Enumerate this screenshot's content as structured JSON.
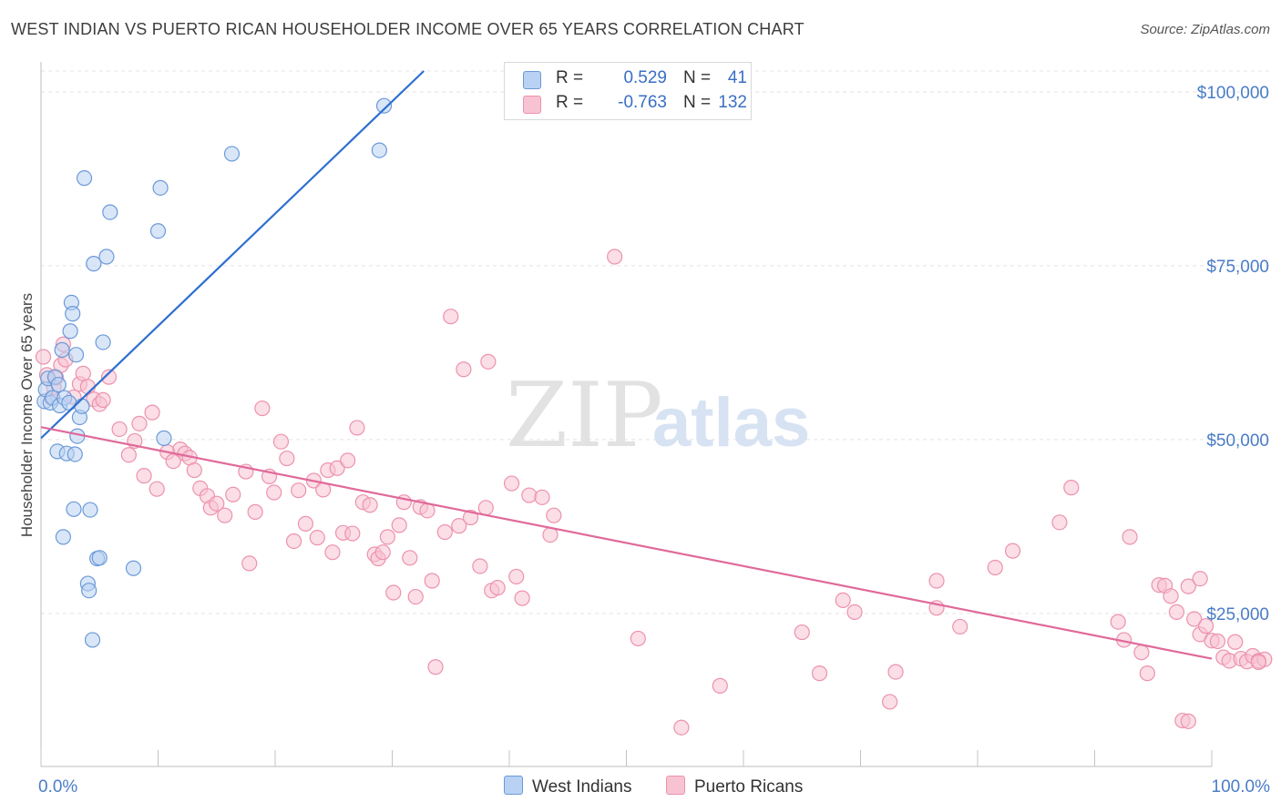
{
  "title": "WEST INDIAN VS PUERTO RICAN HOUSEHOLDER INCOME OVER 65 YEARS CORRELATION CHART",
  "source": "Source: ZipAtlas.com",
  "watermark": {
    "zip": "ZIP",
    "atlas": "atlas"
  },
  "colors": {
    "blue_fill": "#b9d1f2",
    "blue_stroke": "#6b9ad8",
    "blue_line": "#2f6fd0",
    "pink_fill": "#f7c3d2",
    "pink_stroke": "#ec92ad",
    "pink_line": "#e0699a",
    "accent_text": "#3a6fc4"
  },
  "legend": {
    "rows": [
      {
        "r_label": "R =",
        "r_value": "0.529",
        "n_label": "N =",
        "n_value": "41"
      },
      {
        "r_label": "R =",
        "r_value": "-0.763",
        "n_label": "N =",
        "n_value": "132"
      }
    ]
  },
  "bottom_legend": {
    "series1": "West Indians",
    "series2": "Puerto Ricans"
  },
  "chart_data": {
    "type": "scatter",
    "title": "WEST INDIAN VS PUERTO RICAN HOUSEHOLDER INCOME OVER 65 YEARS CORRELATION CHART",
    "xlabel": "",
    "ylabel": "Householder Income Over 65 years",
    "x_tick_labels": [
      "0.0%",
      "100.0%"
    ],
    "y_tick_labels": [
      "$100,000",
      "$75,000",
      "$50,000",
      "$25,000"
    ],
    "y_ticks": [
      100000,
      75000,
      50000,
      25000
    ],
    "xlim": [
      0,
      100
    ],
    "ylim": [
      3000,
      103000
    ],
    "grid": true,
    "legend_position": "top-center",
    "series": [
      {
        "name": "West Indians",
        "r": 0.529,
        "n": 41,
        "trend": {
          "x0": 0.0,
          "y0": 50200,
          "x1": 32.7,
          "y1": 103000
        },
        "points": [
          [
            0.3,
            55500
          ],
          [
            0.4,
            57200
          ],
          [
            0.6,
            58800
          ],
          [
            0.8,
            55300
          ],
          [
            1.0,
            56000
          ],
          [
            1.2,
            59000
          ],
          [
            1.4,
            48300
          ],
          [
            1.6,
            54900
          ],
          [
            1.8,
            62900
          ],
          [
            2.0,
            56000
          ],
          [
            2.2,
            48000
          ],
          [
            2.4,
            55300
          ],
          [
            2.5,
            65600
          ],
          [
            2.6,
            69700
          ],
          [
            2.7,
            68100
          ],
          [
            2.8,
            40000
          ],
          [
            2.9,
            47900
          ],
          [
            3.0,
            62200
          ],
          [
            3.1,
            50500
          ],
          [
            3.3,
            53200
          ],
          [
            3.5,
            54800
          ],
          [
            1.9,
            36000
          ],
          [
            3.7,
            87600
          ],
          [
            4.0,
            29300
          ],
          [
            4.1,
            28300
          ],
          [
            4.2,
            39900
          ],
          [
            4.4,
            21200
          ],
          [
            4.5,
            75300
          ],
          [
            4.8,
            32900
          ],
          [
            5.0,
            33000
          ],
          [
            5.3,
            64000
          ],
          [
            5.6,
            76300
          ],
          [
            5.9,
            82700
          ],
          [
            7.9,
            31500
          ],
          [
            10.0,
            80000
          ],
          [
            10.2,
            86200
          ],
          [
            10.5,
            50200
          ],
          [
            16.3,
            91100
          ],
          [
            28.9,
            91600
          ],
          [
            29.3,
            98000
          ],
          [
            1.5,
            57900
          ]
        ]
      },
      {
        "name": "Puerto Ricans",
        "r": -0.763,
        "n": 132,
        "trend": {
          "x0": 0.0,
          "y0": 51800,
          "x1": 100.0,
          "y1": 18500
        },
        "points": [
          [
            0.2,
            61900
          ],
          [
            0.5,
            59300
          ],
          [
            0.9,
            56000
          ],
          [
            1.1,
            57500
          ],
          [
            1.3,
            58900
          ],
          [
            1.7,
            60700
          ],
          [
            1.9,
            63700
          ],
          [
            2.1,
            61500
          ],
          [
            2.8,
            56100
          ],
          [
            3.3,
            58000
          ],
          [
            3.6,
            59500
          ],
          [
            4.0,
            57600
          ],
          [
            4.5,
            55800
          ],
          [
            5.0,
            55100
          ],
          [
            5.3,
            55700
          ],
          [
            5.8,
            59000
          ],
          [
            6.7,
            51500
          ],
          [
            7.5,
            47800
          ],
          [
            8.0,
            49800
          ],
          [
            8.4,
            52300
          ],
          [
            8.8,
            44800
          ],
          [
            9.5,
            53900
          ],
          [
            9.9,
            42900
          ],
          [
            10.8,
            48200
          ],
          [
            11.3,
            46900
          ],
          [
            11.9,
            48600
          ],
          [
            12.3,
            48000
          ],
          [
            12.7,
            47400
          ],
          [
            13.1,
            45600
          ],
          [
            13.6,
            43000
          ],
          [
            14.2,
            41900
          ],
          [
            14.5,
            40200
          ],
          [
            15.0,
            40800
          ],
          [
            15.7,
            39100
          ],
          [
            16.4,
            42100
          ],
          [
            17.5,
            45400
          ],
          [
            17.8,
            32200
          ],
          [
            18.3,
            39600
          ],
          [
            18.9,
            54500
          ],
          [
            19.5,
            44700
          ],
          [
            19.9,
            42400
          ],
          [
            20.5,
            49700
          ],
          [
            21.0,
            47300
          ],
          [
            21.6,
            35400
          ],
          [
            22.0,
            42700
          ],
          [
            22.6,
            37900
          ],
          [
            23.3,
            44100
          ],
          [
            23.6,
            35900
          ],
          [
            24.1,
            42800
          ],
          [
            24.5,
            45600
          ],
          [
            24.9,
            33800
          ],
          [
            25.3,
            45900
          ],
          [
            25.8,
            36600
          ],
          [
            26.2,
            47000
          ],
          [
            26.6,
            36500
          ],
          [
            27.0,
            51700
          ],
          [
            27.5,
            41000
          ],
          [
            28.1,
            40600
          ],
          [
            28.5,
            33500
          ],
          [
            28.8,
            32900
          ],
          [
            29.2,
            33800
          ],
          [
            29.6,
            36000
          ],
          [
            30.1,
            28000
          ],
          [
            30.6,
            37700
          ],
          [
            31.0,
            41000
          ],
          [
            31.5,
            33000
          ],
          [
            32.0,
            27400
          ],
          [
            32.4,
            40300
          ],
          [
            33.0,
            39800
          ],
          [
            33.4,
            29700
          ],
          [
            33.7,
            17300
          ],
          [
            34.5,
            36700
          ],
          [
            35.0,
            67700
          ],
          [
            35.7,
            37600
          ],
          [
            36.1,
            60100
          ],
          [
            36.7,
            38800
          ],
          [
            37.5,
            31800
          ],
          [
            38.0,
            40200
          ],
          [
            38.2,
            61200
          ],
          [
            38.5,
            28300
          ],
          [
            39.0,
            28700
          ],
          [
            40.2,
            43700
          ],
          [
            40.6,
            30300
          ],
          [
            41.1,
            27200
          ],
          [
            41.7,
            42000
          ],
          [
            42.8,
            41700
          ],
          [
            43.5,
            36300
          ],
          [
            43.8,
            39100
          ],
          [
            49.0,
            76300
          ],
          [
            51.0,
            21400
          ],
          [
            54.7,
            8600
          ],
          [
            58.0,
            14600
          ],
          [
            65.0,
            22300
          ],
          [
            66.5,
            16400
          ],
          [
            68.5,
            26900
          ],
          [
            69.5,
            25200
          ],
          [
            72.5,
            12300
          ],
          [
            73.0,
            16600
          ],
          [
            76.5,
            25800
          ],
          [
            76.5,
            29700
          ],
          [
            78.5,
            23100
          ],
          [
            81.5,
            31600
          ],
          [
            83.0,
            34000
          ],
          [
            87.0,
            38100
          ],
          [
            88.0,
            43100
          ],
          [
            92.0,
            23800
          ],
          [
            92.5,
            21200
          ],
          [
            93.0,
            36000
          ],
          [
            94.0,
            19400
          ],
          [
            94.5,
            16400
          ],
          [
            95.5,
            29100
          ],
          [
            96.0,
            29000
          ],
          [
            96.5,
            27500
          ],
          [
            97.0,
            25200
          ],
          [
            97.5,
            9600
          ],
          [
            98.0,
            28900
          ],
          [
            98.0,
            9500
          ],
          [
            98.5,
            24200
          ],
          [
            99.0,
            30000
          ],
          [
            99.0,
            22000
          ],
          [
            99.5,
            23200
          ],
          [
            100.0,
            21100
          ],
          [
            100.5,
            21000
          ],
          [
            101.0,
            18700
          ],
          [
            101.5,
            18200
          ],
          [
            102.0,
            20900
          ],
          [
            102.5,
            18500
          ],
          [
            103.0,
            18100
          ],
          [
            103.5,
            18900
          ],
          [
            104.0,
            18200
          ],
          [
            104.5,
            18400
          ],
          [
            104.0,
            18000
          ]
        ]
      }
    ]
  }
}
